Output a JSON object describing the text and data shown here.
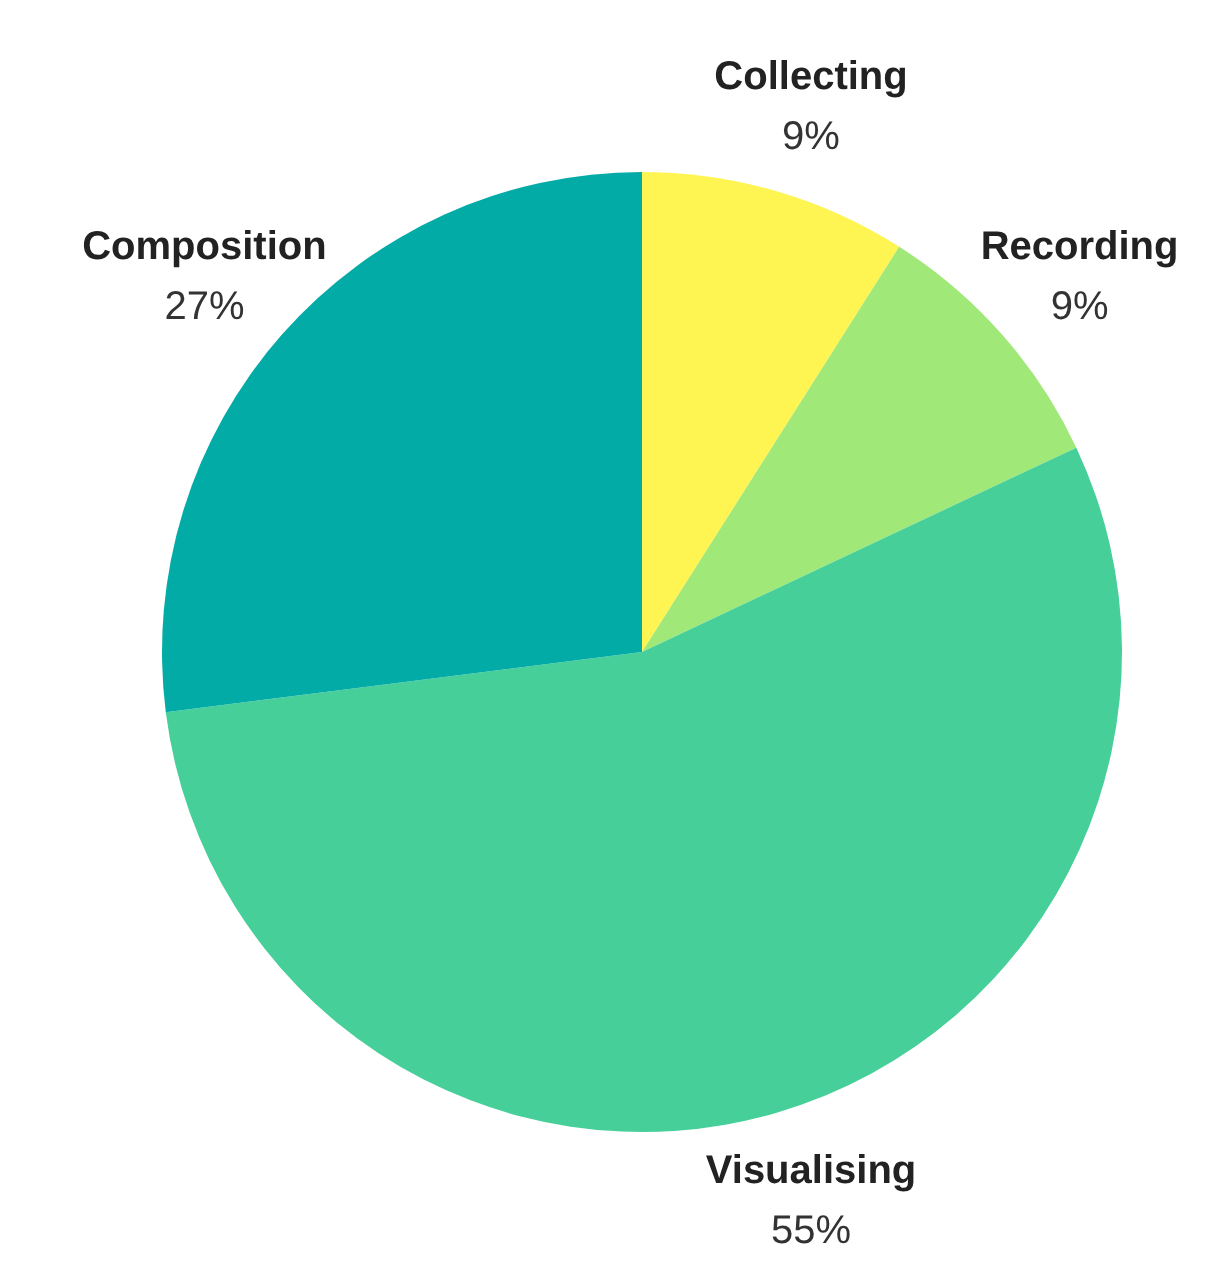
{
  "chart_data": {
    "type": "pie",
    "categories": [
      "Collecting",
      "Recording",
      "Visualising",
      "Composition"
    ],
    "values": [
      9,
      9,
      55,
      27
    ],
    "value_labels": [
      "9%",
      "9%",
      "55%",
      "27%"
    ],
    "colors": [
      "#fef553",
      "#a0e878",
      "#46cf99",
      "#03aba7"
    ],
    "legend": false
  }
}
